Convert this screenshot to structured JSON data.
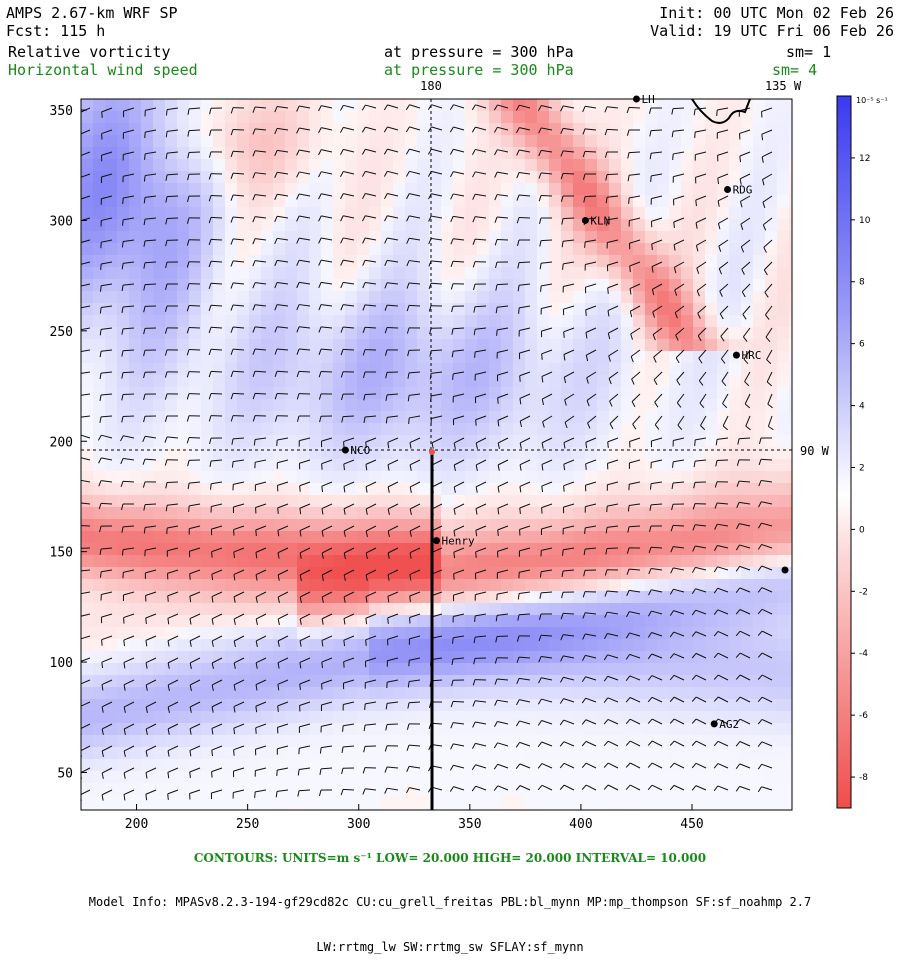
{
  "header": {
    "model": "AMPS 2.67-km WRF SP",
    "fcst": "Fcst: 115 h",
    "init": "Init: 00 UTC Mon 02 Feb 26",
    "valid": "Valid: 19 UTC Fri 06 Feb 26",
    "field1": {
      "name": "Relative vorticity",
      "level": "at pressure = 300 hPa",
      "smooth": "sm= 1"
    },
    "field2": {
      "name": "Horizontal wind speed",
      "level": "at pressure = 300 hPa",
      "smooth": "sm= 4"
    }
  },
  "map": {
    "x_ticks": [
      "200",
      "250",
      "300",
      "350",
      "400",
      "450"
    ],
    "y_ticks": [
      "50",
      "100",
      "150",
      "200",
      "250",
      "300",
      "350"
    ],
    "x_range": [
      175,
      495
    ],
    "y_range": [
      33,
      355
    ],
    "meridian_label": "180",
    "meridian_label2": "135 W",
    "parallel_label": "90 W",
    "meridian_x": 334,
    "parallel_y": 196,
    "stations": [
      {
        "name": "RDG",
        "x": 466,
        "y": 314
      },
      {
        "name": "KLN",
        "x": 402,
        "y": 300
      },
      {
        "name": "HRC",
        "x": 470,
        "y": 239
      },
      {
        "name": "NCO",
        "x": 294,
        "y": 196
      },
      {
        "name": "Henry",
        "x": 335,
        "y": 155
      },
      {
        "name": "AG2",
        "x": 460,
        "y": 72
      },
      {
        "name": "LH",
        "x": 425,
        "y": 355
      }
    ],
    "colors": {
      "positive": "#3a3af0",
      "negative": "#f05050",
      "coast": "#000000",
      "grid": "#000000"
    }
  },
  "colorbar": {
    "unit_label": "10⁻⁵ s⁻¹",
    "ticks": [
      "12",
      "10",
      "8",
      "6",
      "4",
      "2",
      "0",
      "-2",
      "-4",
      "-6",
      "-8"
    ],
    "tick_values": [
      12,
      10,
      8,
      6,
      4,
      2,
      0,
      -2,
      -4,
      -6,
      -8
    ],
    "range": [
      -9,
      14
    ],
    "swatches": [
      "#3a3af0",
      "#5454f2",
      "#6e6ef4",
      "#8888f6",
      "#a2a2f8",
      "#bcbcfa",
      "#d6d6fc",
      "#f0f0fe",
      "#fef2f2",
      "#fcd6d6",
      "#faa8a8",
      "#f88a8a",
      "#f56e6e",
      "#f25252"
    ]
  },
  "footer": {
    "contours": "CONTOURS: UNITS=m s⁻¹ LOW= 20.000 HIGH= 20.000 INTERVAL= 10.000",
    "model_info": "Model Info: MPASv8.2.3-194-gf29cd82c CU:cu_grell_freitas PBL:bl_mynn MP:mp_thompson SF:sf_noahmp 2.7",
    "physics": "LW:rrtmg_lw SW:rrtmg_sw SFLAY:sf_mynn"
  }
}
